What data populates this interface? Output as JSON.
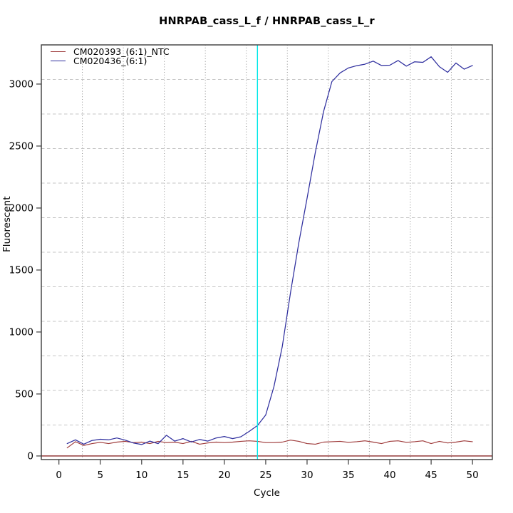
{
  "chart_data": {
    "type": "line",
    "title": "HNRPAB_cass_L_f / HNRPAB_cass_L_r",
    "xlabel": "Cycle",
    "ylabel": "Fluorescent",
    "x_ticks": [
      0,
      5,
      10,
      15,
      20,
      25,
      30,
      35,
      40,
      45,
      50
    ],
    "y_ticks": [
      0,
      500,
      1000,
      1500,
      2000,
      2500,
      3000
    ],
    "xlim": [
      -2.13,
      52.4
    ],
    "ylim": [
      -29,
      3316
    ],
    "grid": {
      "v_divisions": 11,
      "h_divisions": 12,
      "h_style": "dashed",
      "v_style": "dotted"
    },
    "legend_position": "top-left",
    "x_start_cycle": 1,
    "series": [
      {
        "name": "CM020393_(6:1)_NTC",
        "color": "#9E3A3A",
        "values": [
          65,
          115,
          85,
          100,
          110,
          100,
          112,
          118,
          108,
          112,
          100,
          118,
          108,
          112,
          100,
          118,
          95,
          105,
          112,
          108,
          112,
          118,
          122,
          118,
          108,
          108,
          112,
          128,
          118,
          100,
          95,
          112,
          115,
          118,
          110,
          115,
          122,
          112,
          100,
          118,
          122,
          110,
          115,
          122,
          100,
          118,
          105,
          112,
          122,
          115
        ]
      },
      {
        "name": "CM020436_(6:1)",
        "color": "#2E2E9E",
        "values": [
          100,
          130,
          95,
          125,
          135,
          130,
          145,
          128,
          105,
          92,
          120,
          100,
          167,
          120,
          140,
          113,
          133,
          120,
          145,
          157,
          140,
          155,
          198,
          245,
          330,
          560,
          880,
          1320,
          1720,
          2080,
          2450,
          2780,
          3020,
          3090,
          3130,
          3148,
          3160,
          3185,
          3150,
          3152,
          3190,
          3145,
          3180,
          3175,
          3220,
          3140,
          3095,
          3170,
          3120,
          3150
        ]
      }
    ],
    "threshold_line": {
      "y": 0,
      "color": "#8B2A2A"
    },
    "ct_vline": {
      "x": 24,
      "color": "#00E8E8"
    }
  },
  "colors": {
    "box": "#3C3C3C",
    "h_grid": "#C4C4C4",
    "v_grid": "#8F8F8F",
    "tick": "#2B2B2B"
  }
}
